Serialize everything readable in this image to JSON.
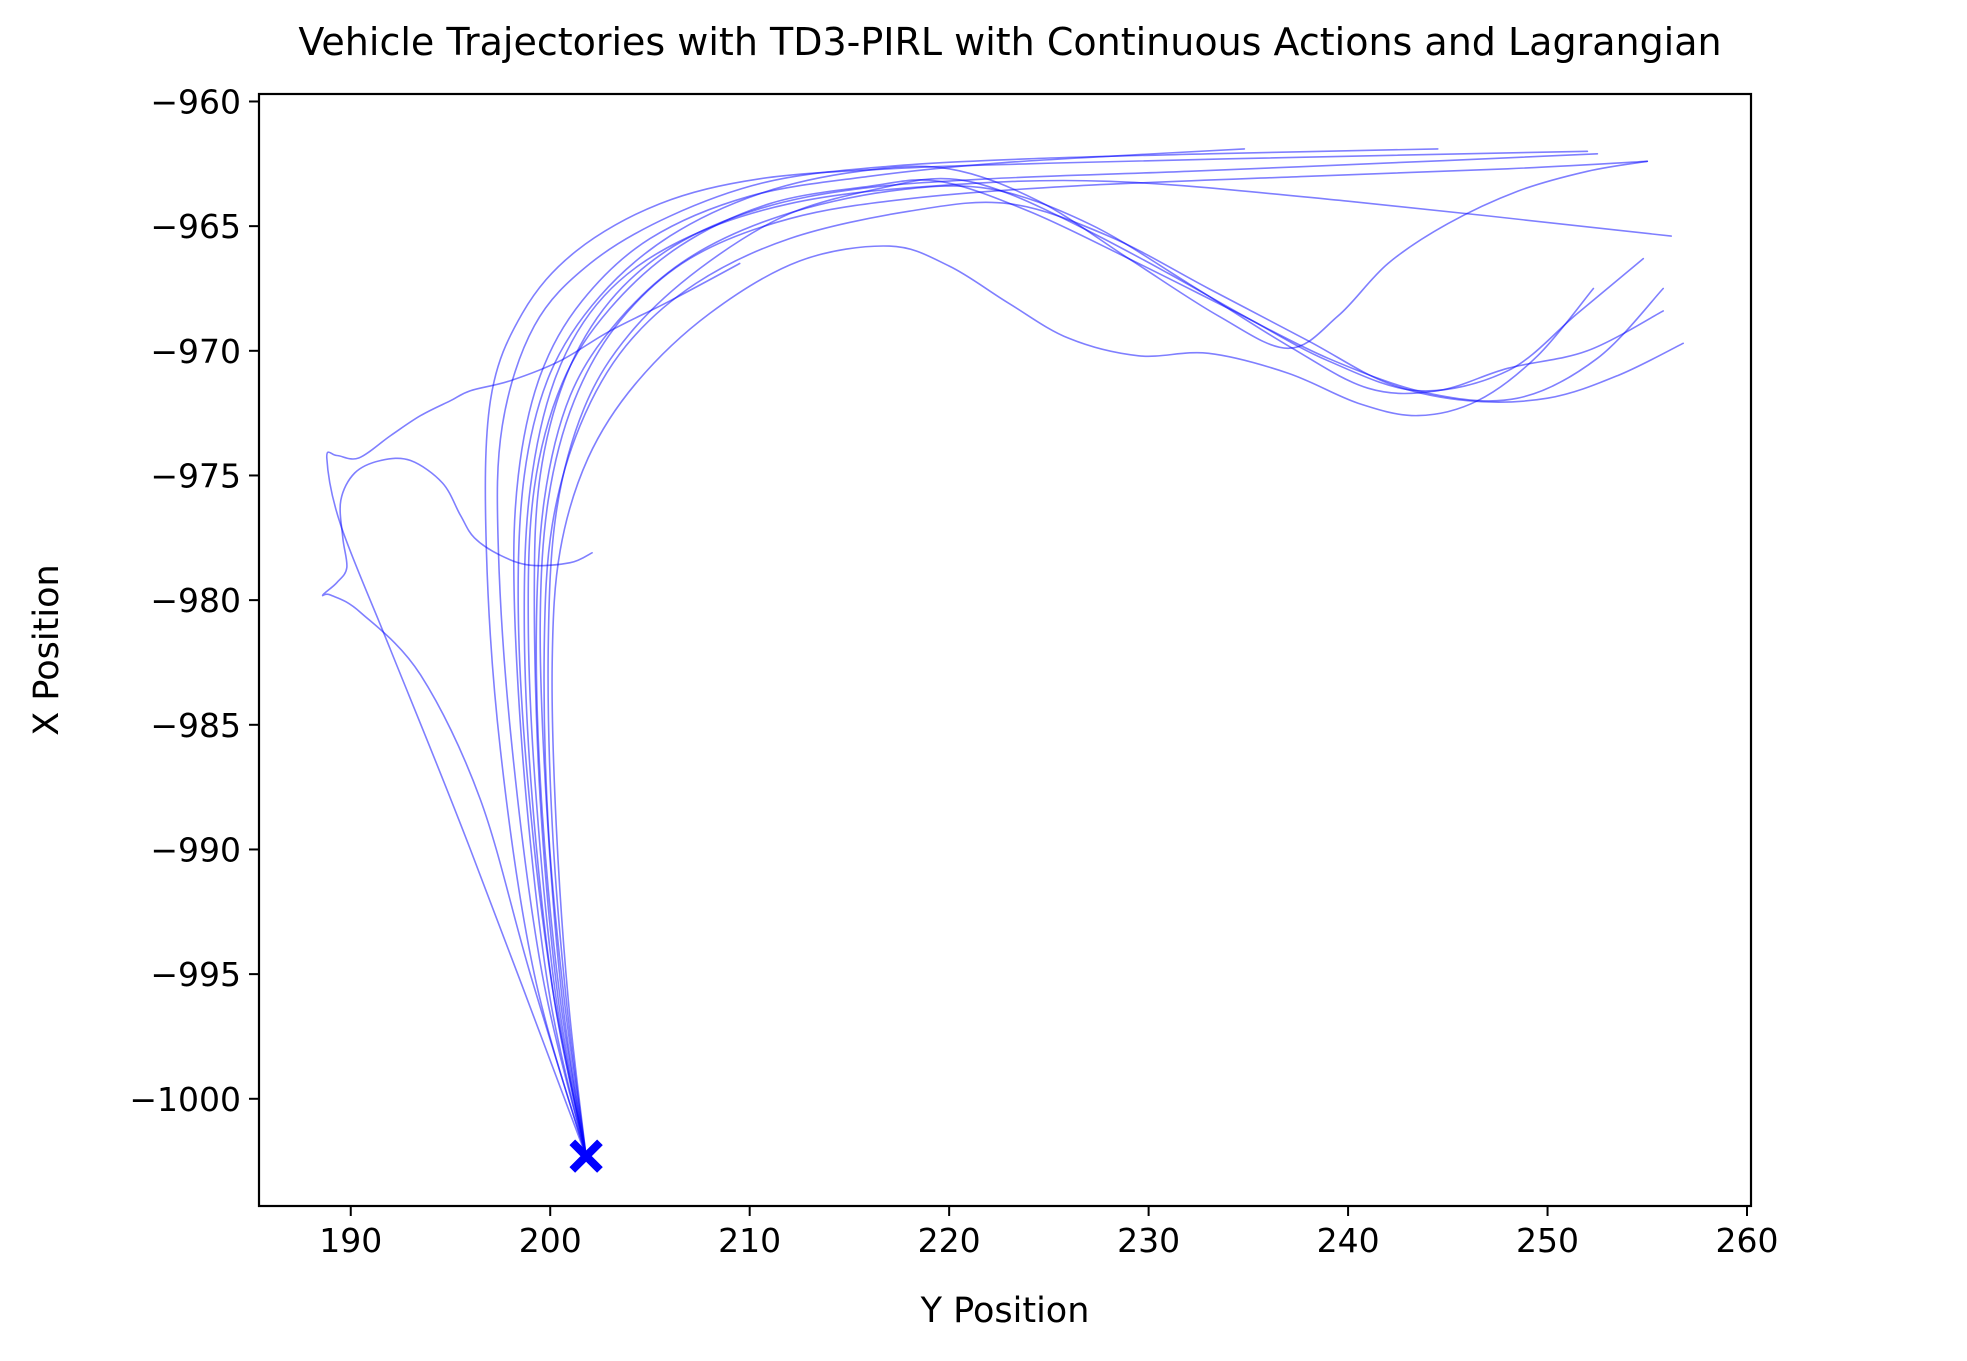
{
  "chart_data": {
    "type": "line",
    "title": "Vehicle Trajectories with TD3-PIRL with Continuous Actions and Lagrangian",
    "xlabel": "Y Position",
    "ylabel": "X Position",
    "xlim": [
      185.4,
      260.2
    ],
    "ylim": [
      -1004.3,
      -959.7
    ],
    "xticks": [
      "190",
      "200",
      "210",
      "220",
      "230",
      "240",
      "250",
      "260"
    ],
    "yticks": [
      "−960",
      "−965",
      "−970",
      "−975",
      "−980",
      "−985",
      "−990",
      "−995",
      "−1000"
    ],
    "xtick_values": [
      190,
      200,
      210,
      220,
      230,
      240,
      250,
      260
    ],
    "ytick_values": [
      -960,
      -965,
      -970,
      -975,
      -980,
      -985,
      -990,
      -995,
      -1000
    ],
    "line_color": "#0000ff",
    "line_opacity": 0.5,
    "start_marker": {
      "shape": "x",
      "color": "#0000ff",
      "x": 201.8,
      "y": -1002.3
    },
    "series": [
      {
        "x": [
          201.8,
          200,
          198.8,
          198.2,
          198.4,
          199.5,
          201.6,
          205,
          210,
          216,
          222,
          228,
          234.8
        ],
        "y": [
          -1002.3,
          -996,
          -988,
          -980,
          -975,
          -971,
          -968,
          -965.5,
          -963.8,
          -963.0,
          -962.5,
          -962.2,
          -961.9
        ]
      },
      {
        "x": [
          201.8,
          199.6,
          198.1,
          197.4,
          197.6,
          199.2,
          202,
          206,
          211,
          217,
          224,
          233,
          244.5
        ],
        "y": [
          -1002.3,
          -995,
          -986,
          -978,
          -973,
          -969,
          -966.5,
          -964.6,
          -963.2,
          -962.6,
          -962.3,
          -962.1,
          -961.9
        ]
      },
      {
        "x": [
          201.8,
          200.4,
          199.5,
          199.2,
          199.5,
          200.8,
          203,
          206.2,
          210.5,
          215.5,
          222,
          232,
          244,
          252.5
        ],
        "y": [
          -1002.3,
          -996,
          -988,
          -980,
          -975,
          -971,
          -968,
          -965.8,
          -964.3,
          -963.5,
          -963.1,
          -962.8,
          -962.4,
          -962.1
        ]
      },
      {
        "x": [
          201.8,
          199.2,
          197.5,
          196.8,
          197,
          198.6,
          201.3,
          205.5,
          210.5,
          217,
          224,
          234,
          252
        ],
        "y": [
          -1002.3,
          -995,
          -986,
          -978,
          -972,
          -968.5,
          -966,
          -964.1,
          -963.1,
          -962.7,
          -962.5,
          -962.3,
          -962.0
        ]
      },
      {
        "x": [
          201.8,
          200.6,
          199.8,
          199.5,
          199.9,
          201.2,
          203.5,
          207,
          212,
          218,
          226,
          238,
          248,
          255
        ],
        "y": [
          -1002.3,
          -996,
          -988,
          -981,
          -976,
          -972,
          -968.8,
          -966.3,
          -964.7,
          -963.9,
          -963.4,
          -963.0,
          -962.7,
          -962.4
        ]
      },
      {
        "x": [
          201.8,
          200.2,
          199.1,
          198.7,
          199.0,
          200.3,
          202.7,
          206.5,
          212,
          219,
          228,
          240,
          256.2
        ],
        "y": [
          -1002.3,
          -996,
          -988,
          -981,
          -975.5,
          -971,
          -967.8,
          -965.6,
          -964.1,
          -963.4,
          -963.2,
          -964.0,
          -965.4
        ]
      },
      {
        "x": [
          201.8,
          200.8,
          200.1,
          199.9,
          200.3,
          201.7,
          204,
          207.5,
          212,
          217,
          220,
          223,
          227,
          231,
          235,
          239,
          243.5,
          248,
          251.5,
          254.8
        ],
        "y": [
          -1002.3,
          -996,
          -989,
          -982,
          -976.5,
          -972.3,
          -969.3,
          -966.7,
          -964.5,
          -963.4,
          -963.1,
          -963.7,
          -965.2,
          -966.9,
          -968.7,
          -970.4,
          -971.6,
          -970.8,
          -968.5,
          -966.3
        ]
      },
      {
        "x": [
          201.8,
          200.3,
          199.3,
          198.9,
          199.2,
          200.6,
          203,
          206.5,
          211,
          216,
          219.5,
          224,
          229,
          234,
          239,
          244,
          248.5,
          252.5,
          255.8
        ],
        "y": [
          -1002.3,
          -996,
          -988,
          -981,
          -975.5,
          -971.3,
          -968.3,
          -965.8,
          -964.1,
          -963.4,
          -963.2,
          -964.4,
          -966.3,
          -968.3,
          -970.3,
          -971.7,
          -971.9,
          -970.3,
          -967.5
        ]
      },
      {
        "x": [
          201.8,
          200.7,
          199.9,
          199.7,
          200.1,
          201.5,
          203.8,
          207.3,
          212,
          218,
          223,
          228,
          233,
          238,
          242,
          246,
          250,
          253.5,
          256.8
        ],
        "y": [
          -1002.3,
          -996,
          -989,
          -982,
          -977,
          -973,
          -969.8,
          -967.3,
          -965.5,
          -964.4,
          -964.1,
          -965.4,
          -967.5,
          -969.6,
          -971.3,
          -972.0,
          -971.9,
          -971.0,
          -969.7
        ]
      },
      {
        "x": [
          201.8,
          200.5,
          199.6,
          199.3,
          199.7,
          201.0,
          203.4,
          206.9,
          211.5,
          217,
          222,
          227,
          232,
          237,
          241,
          244.5,
          248,
          252,
          255.8
        ],
        "y": [
          -1002.3,
          -996,
          -988.5,
          -981.5,
          -976,
          -971.8,
          -968.8,
          -966.3,
          -964.6,
          -963.6,
          -963.5,
          -964.9,
          -967.3,
          -969.8,
          -971.5,
          -971.6,
          -970.7,
          -970.0,
          -968.4
        ]
      },
      {
        "x": [
          201.8,
          200.9,
          200.3,
          200.1,
          200.5,
          201.9,
          204.3,
          208,
          212.5,
          217,
          220,
          223,
          226,
          229.5,
          233,
          237,
          240.5,
          243.5,
          246.5,
          249.5,
          252.3
        ],
        "y": [
          -1002.3,
          -996,
          -989,
          -982.5,
          -978,
          -974.3,
          -971.3,
          -968.5,
          -966.4,
          -965.8,
          -966.6,
          -968.1,
          -969.5,
          -970.2,
          -970.1,
          -970.9,
          -972.1,
          -972.6,
          -972.0,
          -970.2,
          -967.5
        ]
      },
      {
        "x": [
          201.8,
          200.1,
          198.9,
          198.4,
          198.7,
          200.0,
          202.5,
          206,
          210.5,
          215.5,
          220,
          224.5,
          229,
          233.5,
          237,
          239.5,
          242,
          245,
          248.5,
          252,
          255
        ],
        "y": [
          -1002.3,
          -995.5,
          -987.5,
          -980.5,
          -975,
          -970.9,
          -967.8,
          -965.4,
          -963.7,
          -962.8,
          -962.7,
          -964.0,
          -966.3,
          -968.6,
          -969.9,
          -968.6,
          -966.5,
          -964.9,
          -963.6,
          -962.8,
          -962.4
        ]
      },
      {
        "x": [
          201.8,
          199.0,
          196.5,
          193.5,
          190.5,
          189.0,
          188.6,
          189.3,
          189.8,
          189.6,
          189.5,
          190.2,
          191.5,
          193,
          194.6,
          195.5,
          196.2,
          197.5,
          199,
          201,
          202.1
        ],
        "y": [
          -1002.3,
          -995,
          -988,
          -983,
          -980.5,
          -979.8,
          -979.8,
          -979.3,
          -978.7,
          -977.5,
          -976.0,
          -974.9,
          -974.4,
          -974.4,
          -975.3,
          -976.6,
          -977.5,
          -978.2,
          -978.6,
          -978.5,
          -978.1
        ]
      },
      {
        "x": [
          201.8,
          196,
          192,
          189.5,
          188.8,
          189.3,
          190.4,
          192,
          193.5,
          195.0,
          196.0,
          198.0,
          200.5,
          203,
          206,
          209.5
        ],
        "y": [
          -1002.3,
          -990,
          -982,
          -977,
          -974.3,
          -974.2,
          -974.3,
          -973.4,
          -972.6,
          -972.0,
          -971.6,
          -971.2,
          -970.4,
          -969.2,
          -968.0,
          -966.5
        ]
      }
    ]
  }
}
